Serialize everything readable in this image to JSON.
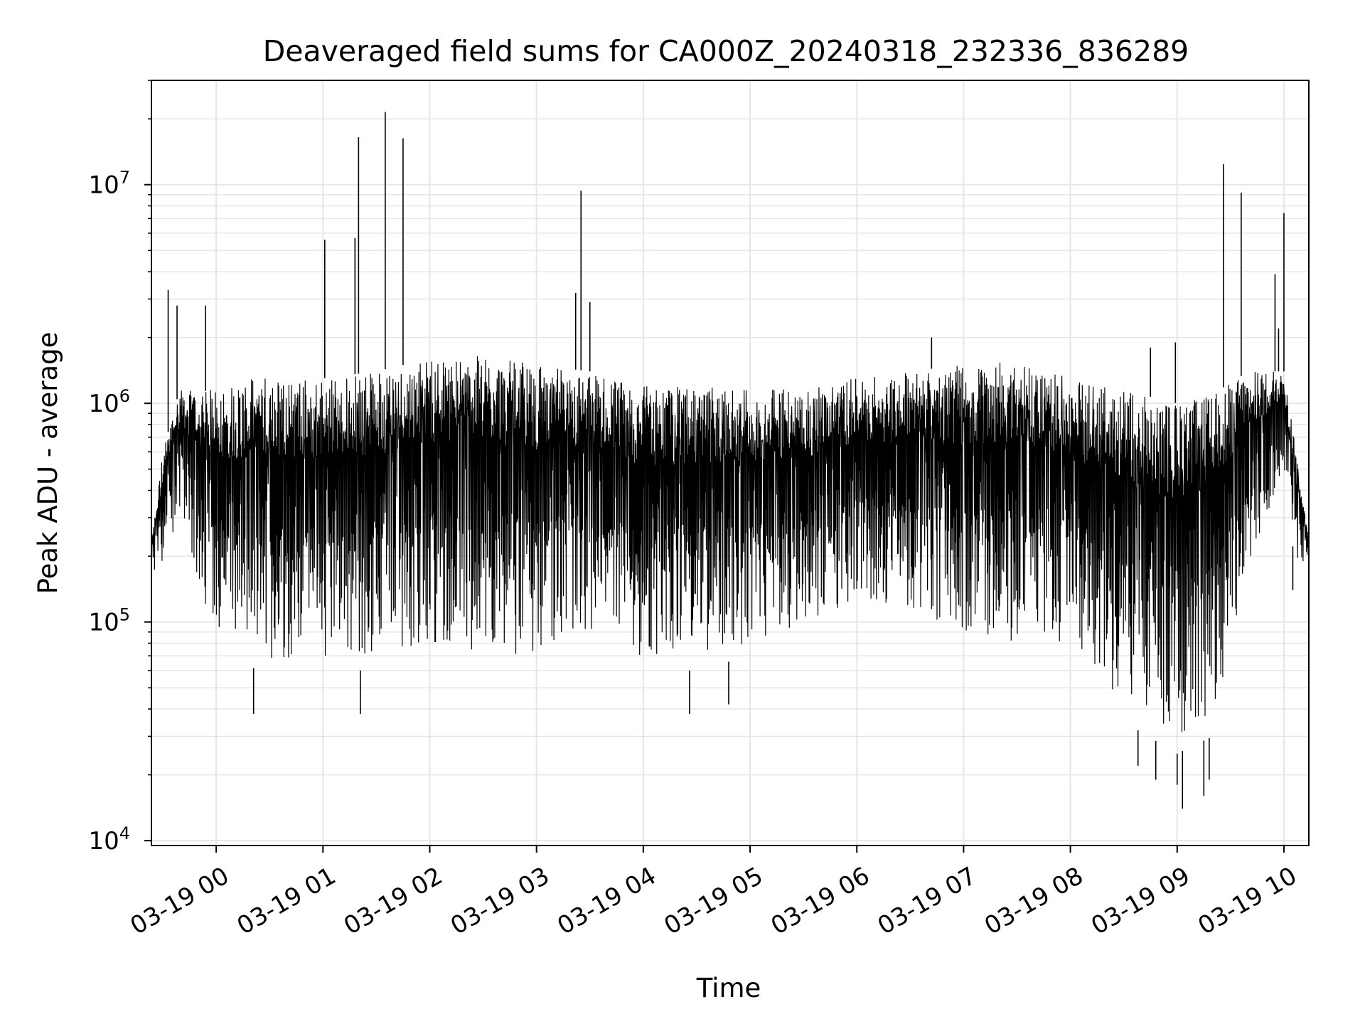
{
  "chart_data": {
    "type": "line",
    "title": "Deaveraged field sums for CA000Z_20240318_232336_836289",
    "xlabel": "Time",
    "ylabel": "Peak ADU - average",
    "x_start": "2024-03-18 23:23:36",
    "x_end": "2024-03-19 10:14:00",
    "xlim": [
      "2024-03-18 23:23:36",
      "2024-03-19 10:14:00"
    ],
    "ylim": [
      9500,
      30000000
    ],
    "yscale": "log",
    "grid": true,
    "line_color": "#000000",
    "grid_color": "#e6e6e6",
    "x_ticks": [
      {
        "value": "2024-03-19 00:00",
        "label": "03-19 00"
      },
      {
        "value": "2024-03-19 01:00",
        "label": "03-19 01"
      },
      {
        "value": "2024-03-19 02:00",
        "label": "03-19 02"
      },
      {
        "value": "2024-03-19 03:00",
        "label": "03-19 03"
      },
      {
        "value": "2024-03-19 04:00",
        "label": "03-19 04"
      },
      {
        "value": "2024-03-19 05:00",
        "label": "03-19 05"
      },
      {
        "value": "2024-03-19 06:00",
        "label": "03-19 06"
      },
      {
        "value": "2024-03-19 07:00",
        "label": "03-19 07"
      },
      {
        "value": "2024-03-19 08:00",
        "label": "03-19 08"
      },
      {
        "value": "2024-03-19 09:00",
        "label": "03-19 09"
      },
      {
        "value": "2024-03-19 10:00",
        "label": "03-19 10"
      }
    ],
    "y_ticks": [
      {
        "value": 10000,
        "base": "10",
        "exp": "4"
      },
      {
        "value": 100000,
        "base": "10",
        "exp": "5"
      },
      {
        "value": 1000000,
        "base": "10",
        "exp": "6"
      },
      {
        "value": 10000000,
        "base": "10",
        "exp": "7"
      }
    ],
    "envelope": {
      "time": [
        "2024-03-18 23:24",
        "2024-03-18 23:30",
        "2024-03-18 23:40",
        "2024-03-18 23:50",
        "2024-03-19 00:00",
        "2024-03-19 00:30",
        "2024-03-19 01:00",
        "2024-03-19 01:30",
        "2024-03-19 02:00",
        "2024-03-19 02:30",
        "2024-03-19 03:00",
        "2024-03-19 03:30",
        "2024-03-19 04:00",
        "2024-03-19 04:30",
        "2024-03-19 05:00",
        "2024-03-19 05:30",
        "2024-03-19 06:00",
        "2024-03-19 06:30",
        "2024-03-19 07:00",
        "2024-03-19 07:30",
        "2024-03-19 08:00",
        "2024-03-19 08:30",
        "2024-03-19 09:00",
        "2024-03-19 09:20",
        "2024-03-19 09:40",
        "2024-03-19 10:00",
        "2024-03-19 10:07",
        "2024-03-19 10:14"
      ],
      "low": [
        150000,
        180000,
        300000,
        130000,
        80000,
        55000,
        60000,
        60000,
        70000,
        60000,
        60000,
        70000,
        60000,
        60000,
        70000,
        80000,
        110000,
        100000,
        70000,
        70000,
        70000,
        35000,
        25000,
        30000,
        150000,
        500000,
        160000,
        200000
      ],
      "high": [
        250000,
        600000,
        1200000,
        1100000,
        1200000,
        1350000,
        1300000,
        1400000,
        1600000,
        1650000,
        1500000,
        1400000,
        1200000,
        1200000,
        1150000,
        1200000,
        1300000,
        1400000,
        1500000,
        1550000,
        1300000,
        1150000,
        1000000,
        1100000,
        1400000,
        1400000,
        600000,
        250000
      ]
    },
    "spikes": [
      {
        "time": "2024-03-18 23:33",
        "value": 3300000
      },
      {
        "time": "2024-03-18 23:38",
        "value": 2800000
      },
      {
        "time": "2024-03-18 23:54",
        "value": 2800000
      },
      {
        "time": "2024-03-19 01:01",
        "value": 5600000
      },
      {
        "time": "2024-03-19 01:18",
        "value": 5700000
      },
      {
        "time": "2024-03-19 01:20",
        "value": 16500000
      },
      {
        "time": "2024-03-19 01:35",
        "value": 21500000
      },
      {
        "time": "2024-03-19 01:45",
        "value": 16300000
      },
      {
        "time": "2024-03-19 03:22",
        "value": 3200000
      },
      {
        "time": "2024-03-19 03:25",
        "value": 9400000
      },
      {
        "time": "2024-03-19 03:30",
        "value": 2900000
      },
      {
        "time": "2024-03-19 06:42",
        "value": 2000000
      },
      {
        "time": "2024-03-19 08:45",
        "value": 1800000
      },
      {
        "time": "2024-03-19 08:59",
        "value": 1900000
      },
      {
        "time": "2024-03-19 09:26",
        "value": 12400000
      },
      {
        "time": "2024-03-19 09:36",
        "value": 9200000
      },
      {
        "time": "2024-03-19 09:55",
        "value": 3900000
      },
      {
        "time": "2024-03-19 09:57",
        "value": 2200000
      },
      {
        "time": "2024-03-19 10:00",
        "value": 7400000
      }
    ],
    "dips": [
      {
        "time": "2024-03-19 00:21",
        "value": 38000
      },
      {
        "time": "2024-03-19 01:21",
        "value": 38000
      },
      {
        "time": "2024-03-19 04:26",
        "value": 38000
      },
      {
        "time": "2024-03-19 04:48",
        "value": 42000
      },
      {
        "time": "2024-03-19 08:38",
        "value": 22000
      },
      {
        "time": "2024-03-19 08:48",
        "value": 19000
      },
      {
        "time": "2024-03-19 09:00",
        "value": 18000
      },
      {
        "time": "2024-03-19 09:03",
        "value": 14000
      },
      {
        "time": "2024-03-19 09:15",
        "value": 16000
      },
      {
        "time": "2024-03-19 09:18",
        "value": 19000
      },
      {
        "time": "2024-03-19 10:05",
        "value": 140000
      }
    ]
  }
}
